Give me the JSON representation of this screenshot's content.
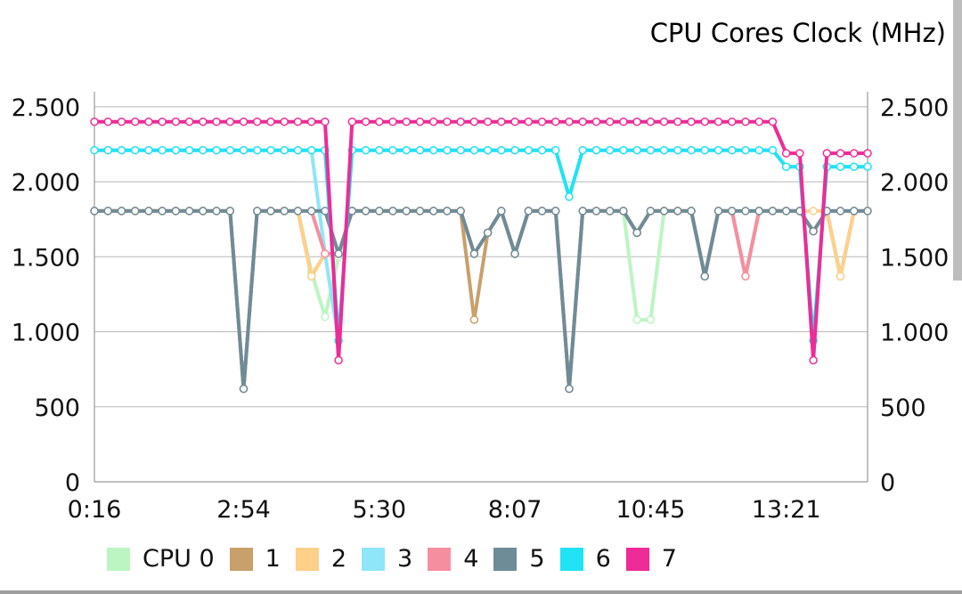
{
  "chart_data": {
    "type": "line",
    "title": "CPU Cores Clock (MHz)",
    "x": [
      "0:16",
      "0:31",
      "0:45",
      "1:00",
      "1:14",
      "1:29",
      "1:43",
      "1:58",
      "2:12",
      "2:27",
      "2:41",
      "2:56",
      "3:10",
      "3:25",
      "3:39",
      "3:54",
      "4:08",
      "4:23",
      "4:37",
      "4:52",
      "5:06",
      "5:21",
      "5:35",
      "5:50",
      "6:04",
      "6:19",
      "6:33",
      "6:48",
      "7:02",
      "7:17",
      "7:31",
      "7:46",
      "8:00",
      "8:15",
      "8:29",
      "8:44",
      "8:58",
      "9:13",
      "9:27",
      "9:42",
      "9:56",
      "10:11",
      "10:25",
      "10:40",
      "10:54",
      "11:09",
      "11:23",
      "11:38",
      "11:52",
      "12:07",
      "12:21",
      "12:36",
      "12:50",
      "13:05",
      "13:19",
      "13:34",
      "13:48",
      "14:03"
    ],
    "x_tick_labels": [
      "0:16",
      "2:54",
      "5:30",
      "8:07",
      "10:45",
      "13:21"
    ],
    "x_tick_positions": [
      0,
      11,
      21,
      31,
      41,
      51
    ],
    "ylim": [
      0,
      2600
    ],
    "y_ticks": [
      0,
      500,
      1000,
      1500,
      2000,
      2500
    ],
    "y_tick_labels": [
      "0",
      "500",
      "1.000",
      "1.500",
      "2.000",
      "2.500"
    ],
    "grid": true,
    "legend_position": "bottom",
    "series": [
      {
        "name": "CPU 0",
        "color": "#bdf5c2",
        "values": [
          1805,
          1805,
          1805,
          1805,
          1805,
          1805,
          1805,
          1805,
          1805,
          1805,
          1805,
          620,
          1805,
          1805,
          1805,
          1805,
          1400,
          1100,
          1500,
          1805,
          1805,
          1805,
          1805,
          1805,
          1805,
          1805,
          1805,
          1805,
          1520,
          1660,
          1805,
          1520,
          1805,
          1805,
          1805,
          620,
          1805,
          1805,
          1805,
          1805,
          1080,
          1080,
          1805,
          1805,
          1805,
          1370,
          1805,
          1805,
          1370,
          1805,
          1805,
          1805,
          1805,
          1670,
          1805,
          1370,
          1805,
          1805
        ]
      },
      {
        "name": "1",
        "color": "#c8a06c",
        "values": [
          1805,
          1805,
          1805,
          1805,
          1805,
          1805,
          1805,
          1805,
          1805,
          1805,
          1805,
          620,
          1805,
          1805,
          1805,
          1805,
          1370,
          1520,
          1520,
          1805,
          1805,
          1805,
          1805,
          1805,
          1805,
          1805,
          1805,
          1805,
          1080,
          1660,
          1805,
          1520,
          1805,
          1805,
          1805,
          620,
          1805,
          1805,
          1805,
          1805,
          1660,
          1805,
          1805,
          1805,
          1805,
          1370,
          1805,
          1805,
          1370,
          1805,
          1805,
          1805,
          1805,
          1670,
          1805,
          1370,
          1805,
          1805
        ]
      },
      {
        "name": "2",
        "color": "#ffd08a",
        "values": [
          1805,
          1805,
          1805,
          1805,
          1805,
          1805,
          1805,
          1805,
          1805,
          1805,
          1805,
          620,
          1805,
          1805,
          1805,
          1805,
          1370,
          1520,
          1520,
          1805,
          1805,
          1805,
          1805,
          1805,
          1805,
          1805,
          1805,
          1805,
          1520,
          1660,
          1805,
          1520,
          1805,
          1805,
          1805,
          620,
          1805,
          1805,
          1805,
          1805,
          1660,
          1805,
          1805,
          1805,
          1805,
          1370,
          1805,
          1805,
          1370,
          1805,
          1805,
          1805,
          1805,
          1805,
          1805,
          1370,
          1805,
          1805
        ]
      },
      {
        "name": "3",
        "color": "#8ee6f8",
        "values": [
          2210,
          2210,
          2210,
          2210,
          2210,
          2210,
          2210,
          2210,
          2210,
          2210,
          2210,
          2210,
          2210,
          2210,
          2210,
          2210,
          2210,
          1520,
          940,
          2210,
          2210,
          2210,
          2210,
          2210,
          2210,
          2210,
          2210,
          2210,
          2210,
          2210,
          2210,
          2210,
          2210,
          2210,
          2210,
          1900,
          2210,
          2210,
          2210,
          2210,
          2210,
          2210,
          2210,
          2210,
          2210,
          2210,
          2210,
          2210,
          2210,
          2210,
          2210,
          2100,
          2100,
          940,
          2100,
          2100,
          2100,
          2100
        ]
      },
      {
        "name": "4",
        "color": "#f58fa0",
        "values": [
          1805,
          1805,
          1805,
          1805,
          1805,
          1805,
          1805,
          1805,
          1805,
          1805,
          1805,
          620,
          1805,
          1805,
          1805,
          1805,
          1805,
          1520,
          1520,
          1805,
          1805,
          1805,
          1805,
          1805,
          1805,
          1805,
          1805,
          1805,
          1520,
          1660,
          1805,
          1520,
          1805,
          1805,
          1805,
          620,
          1805,
          1805,
          1805,
          1805,
          1660,
          1805,
          1805,
          1805,
          1805,
          1370,
          1805,
          1805,
          1370,
          1805,
          1805,
          1805,
          1805,
          1670,
          1805,
          1805,
          1805,
          1805
        ]
      },
      {
        "name": "5",
        "color": "#6e8c97",
        "values": [
          1805,
          1805,
          1805,
          1805,
          1805,
          1805,
          1805,
          1805,
          1805,
          1805,
          1805,
          620,
          1805,
          1805,
          1805,
          1805,
          1805,
          1805,
          1520,
          1805,
          1805,
          1805,
          1805,
          1805,
          1805,
          1805,
          1805,
          1805,
          1520,
          1660,
          1805,
          1520,
          1805,
          1805,
          1805,
          620,
          1805,
          1805,
          1805,
          1805,
          1660,
          1805,
          1805,
          1805,
          1805,
          1370,
          1805,
          1805,
          1805,
          1805,
          1805,
          1805,
          1805,
          1670,
          1805,
          1805,
          1805,
          1805
        ]
      },
      {
        "name": "6",
        "color": "#22e2f5",
        "values": [
          2210,
          2210,
          2210,
          2210,
          2210,
          2210,
          2210,
          2210,
          2210,
          2210,
          2210,
          2210,
          2210,
          2210,
          2210,
          2210,
          2210,
          2210,
          940,
          2210,
          2210,
          2210,
          2210,
          2210,
          2210,
          2210,
          2210,
          2210,
          2210,
          2210,
          2210,
          2210,
          2210,
          2210,
          2210,
          1900,
          2210,
          2210,
          2210,
          2210,
          2210,
          2210,
          2210,
          2210,
          2210,
          2210,
          2210,
          2210,
          2210,
          2210,
          2210,
          2100,
          2100,
          940,
          2100,
          2100,
          2100,
          2100
        ]
      },
      {
        "name": "7",
        "color": "#ee2b96",
        "values": [
          2400,
          2400,
          2400,
          2400,
          2400,
          2400,
          2400,
          2400,
          2400,
          2400,
          2400,
          2400,
          2400,
          2400,
          2400,
          2400,
          2400,
          2400,
          810,
          2400,
          2400,
          2400,
          2400,
          2400,
          2400,
          2400,
          2400,
          2400,
          2400,
          2400,
          2400,
          2400,
          2400,
          2400,
          2400,
          2400,
          2400,
          2400,
          2400,
          2400,
          2400,
          2400,
          2400,
          2400,
          2400,
          2400,
          2400,
          2400,
          2400,
          2400,
          2400,
          2190,
          2190,
          810,
          2190,
          2190,
          2190,
          2190
        ]
      }
    ]
  }
}
